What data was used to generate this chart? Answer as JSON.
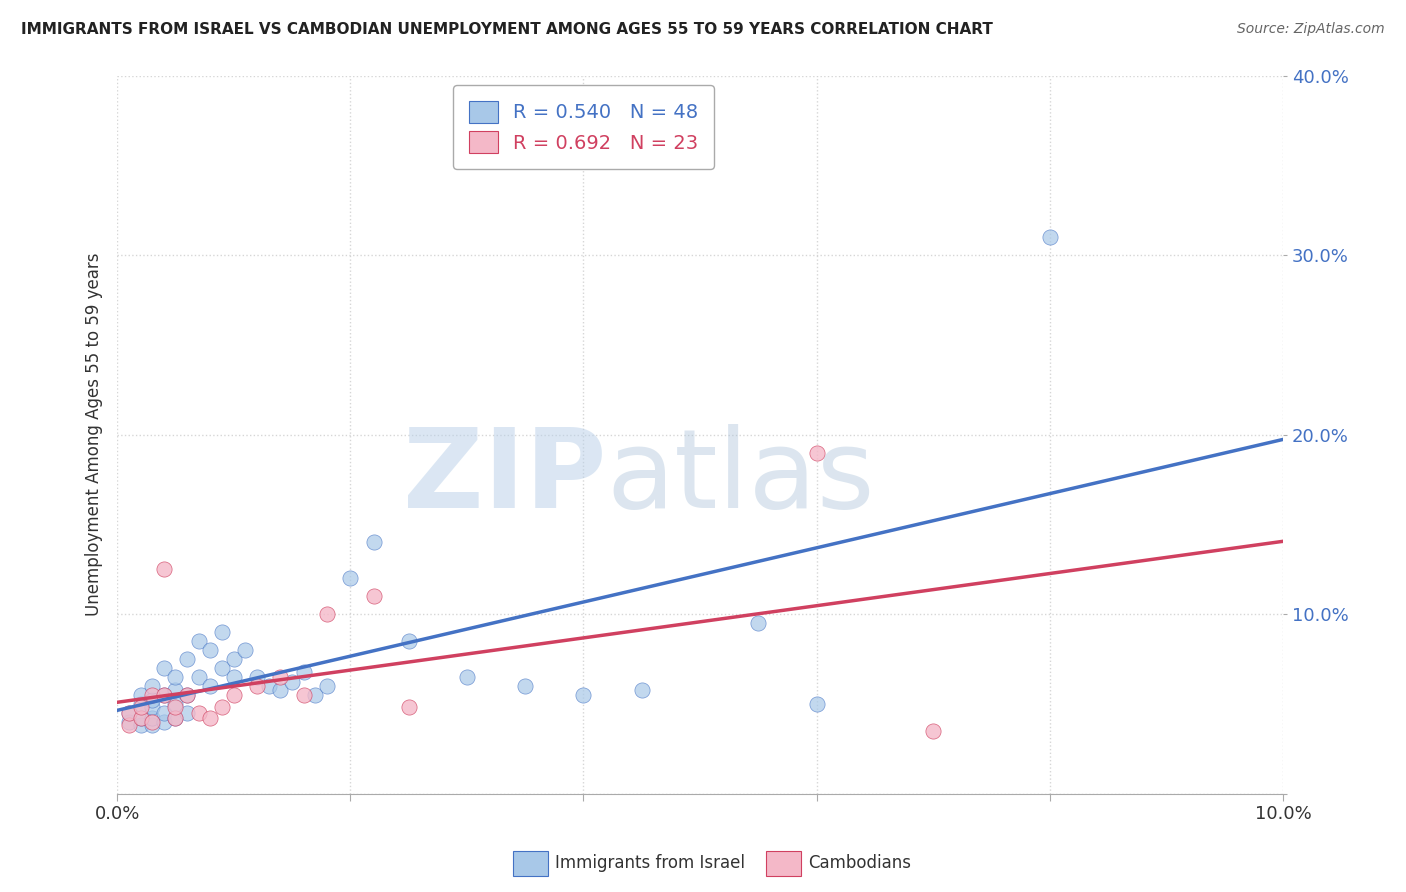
{
  "title": "IMMIGRANTS FROM ISRAEL VS CAMBODIAN UNEMPLOYMENT AMONG AGES 55 TO 59 YEARS CORRELATION CHART",
  "source": "Source: ZipAtlas.com",
  "xlabel": "",
  "ylabel": "Unemployment Among Ages 55 to 59 years",
  "xlim": [
    0.0,
    0.1
  ],
  "ylim": [
    0.0,
    0.4
  ],
  "xticks": [
    0.0,
    0.02,
    0.04,
    0.06,
    0.08,
    0.1
  ],
  "yticks": [
    0.0,
    0.1,
    0.2,
    0.3,
    0.4
  ],
  "xtick_labels": [
    "0.0%",
    "",
    "",
    "",
    "",
    "10.0%"
  ],
  "ytick_labels": [
    "",
    "10.0%",
    "20.0%",
    "30.0%",
    "40.0%"
  ],
  "color_israel": "#a8c8e8",
  "color_cambodian": "#f4b8c8",
  "line_color_israel": "#4472c4",
  "line_color_cambodian": "#d04060",
  "legend_R_israel": "R = 0.540",
  "legend_N_israel": "N = 48",
  "legend_R_cambodian": "R = 0.692",
  "legend_N_cambodian": "N = 23",
  "watermark_zip": "ZIP",
  "watermark_atlas": "atlas",
  "background_color": "#ffffff",
  "grid_color": "#cccccc",
  "israel_x": [
    0.001,
    0.001,
    0.002,
    0.002,
    0.002,
    0.002,
    0.003,
    0.003,
    0.003,
    0.003,
    0.003,
    0.004,
    0.004,
    0.004,
    0.004,
    0.005,
    0.005,
    0.005,
    0.005,
    0.006,
    0.006,
    0.006,
    0.007,
    0.007,
    0.008,
    0.008,
    0.009,
    0.009,
    0.01,
    0.01,
    0.011,
    0.012,
    0.013,
    0.014,
    0.015,
    0.016,
    0.017,
    0.018,
    0.02,
    0.022,
    0.025,
    0.03,
    0.035,
    0.04,
    0.045,
    0.055,
    0.08,
    0.06
  ],
  "israel_y": [
    0.04,
    0.045,
    0.038,
    0.042,
    0.05,
    0.055,
    0.038,
    0.042,
    0.048,
    0.052,
    0.06,
    0.04,
    0.045,
    0.055,
    0.07,
    0.042,
    0.05,
    0.058,
    0.065,
    0.045,
    0.055,
    0.075,
    0.065,
    0.085,
    0.06,
    0.08,
    0.07,
    0.09,
    0.065,
    0.075,
    0.08,
    0.065,
    0.06,
    0.058,
    0.062,
    0.068,
    0.055,
    0.06,
    0.12,
    0.14,
    0.085,
    0.065,
    0.06,
    0.055,
    0.058,
    0.095,
    0.31,
    0.05
  ],
  "cambodian_x": [
    0.001,
    0.001,
    0.002,
    0.002,
    0.003,
    0.003,
    0.004,
    0.004,
    0.005,
    0.005,
    0.006,
    0.007,
    0.008,
    0.009,
    0.01,
    0.012,
    0.014,
    0.016,
    0.018,
    0.022,
    0.025,
    0.06,
    0.07
  ],
  "cambodian_y": [
    0.038,
    0.045,
    0.042,
    0.048,
    0.04,
    0.055,
    0.055,
    0.125,
    0.042,
    0.048,
    0.055,
    0.045,
    0.042,
    0.048,
    0.055,
    0.06,
    0.065,
    0.055,
    0.1,
    0.11,
    0.048,
    0.19,
    0.035
  ]
}
